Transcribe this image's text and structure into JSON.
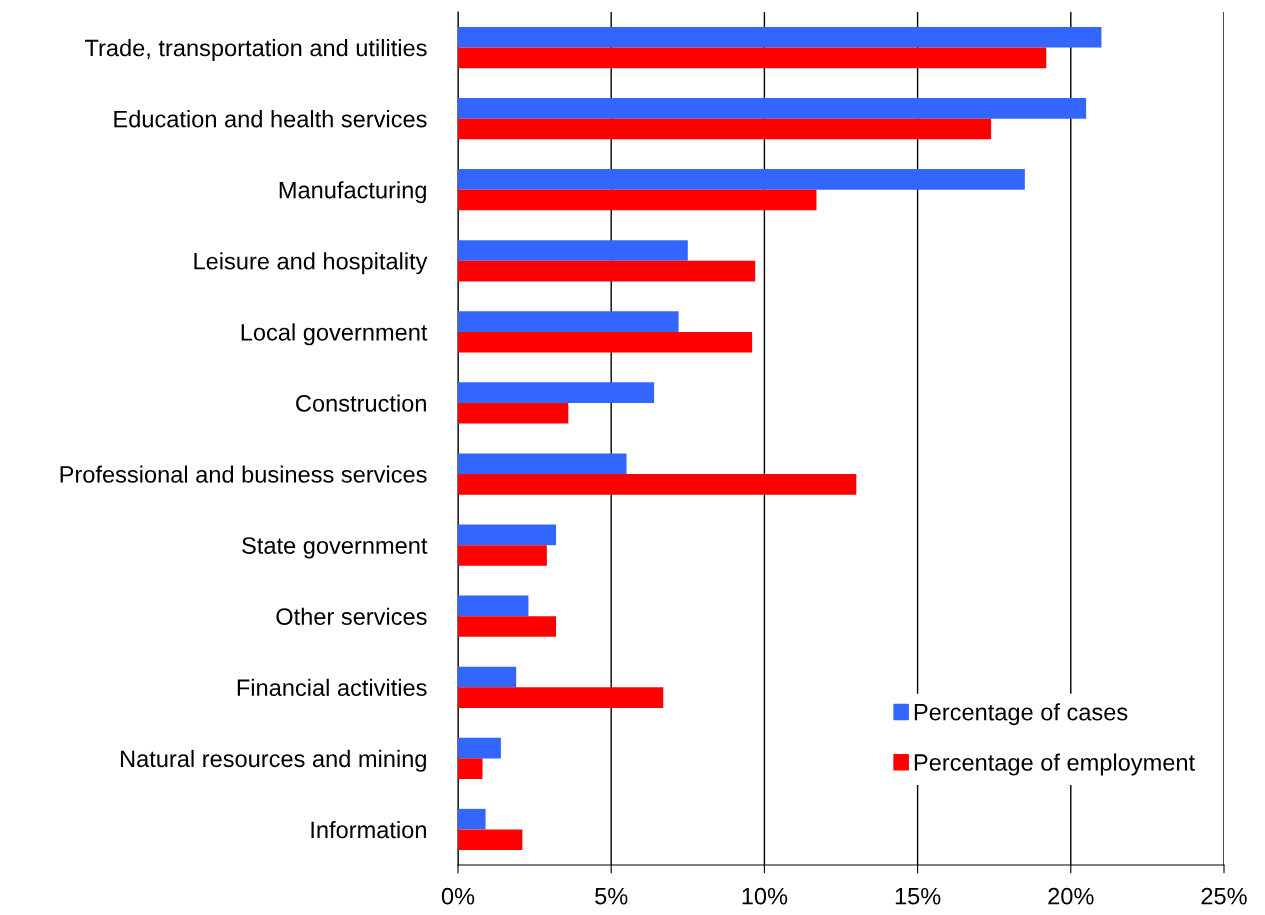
{
  "chart_data": {
    "type": "bar",
    "orientation": "horizontal",
    "categories": [
      "Trade, transportation and utilities",
      "Education and health services",
      "Manufacturing",
      "Leisure and hospitality",
      "Local government",
      "Construction",
      "Professional and business services",
      "State government",
      "Other services",
      "Financial activities",
      "Natural resources and mining",
      "Information"
    ],
    "series": [
      {
        "name": "Percentage of cases",
        "color": "#3366ff",
        "values": [
          21.0,
          20.5,
          18.5,
          7.5,
          7.2,
          6.4,
          5.5,
          3.2,
          2.3,
          1.9,
          1.4,
          0.9
        ]
      },
      {
        "name": "Percentage of employment",
        "color": "#ff0000",
        "values": [
          19.2,
          17.4,
          11.7,
          9.7,
          9.6,
          3.6,
          13.0,
          2.9,
          3.2,
          6.7,
          0.8,
          2.1
        ]
      }
    ],
    "xlim": [
      0,
      25
    ],
    "xticks": [
      {
        "value": 0,
        "label": "0%"
      },
      {
        "value": 5,
        "label": "5%"
      },
      {
        "value": 10,
        "label": "10%"
      },
      {
        "value": 15,
        "label": "15%"
      },
      {
        "value": 20,
        "label": "20%"
      },
      {
        "value": 25,
        "label": "25%"
      }
    ],
    "grid": "x",
    "legend": "bottom right"
  }
}
